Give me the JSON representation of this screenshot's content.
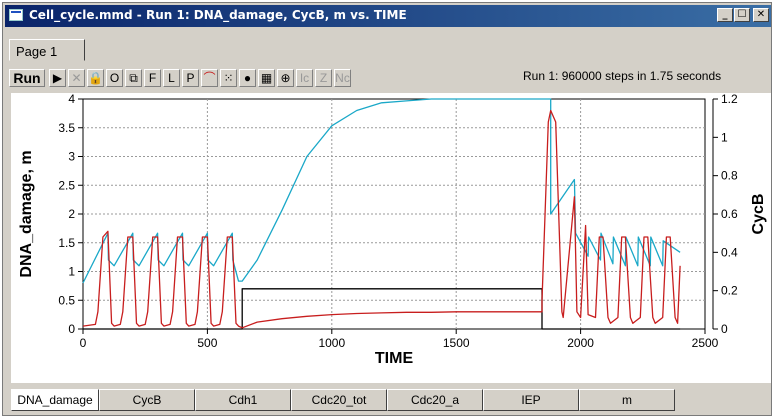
{
  "window": {
    "title": "Cell_cycle.mmd - Run 1: DNA_damage, CycB, m vs. TIME",
    "controls": {
      "minimize": "_",
      "maximize": "☐",
      "close": "✕"
    }
  },
  "tabs": [
    {
      "label": "Page 1"
    }
  ],
  "toolbar": {
    "run_label": "Run",
    "buttons": [
      "▶",
      "✕",
      "🔒",
      "O",
      "⧉",
      "F",
      "L",
      "P",
      "⌒",
      "⁙",
      "●",
      "▦",
      "⊕",
      "Ic",
      "Z",
      "Nc"
    ],
    "status": "Run 1: 960000 steps in 1.75 seconds"
  },
  "chart_data": {
    "type": "line",
    "xlabel": "TIME",
    "ylabel_left": "DNA_damage, m",
    "ylabel_right": "CycB",
    "xlim": [
      0,
      2500
    ],
    "ylim_left": [
      0,
      4
    ],
    "ylim_right": [
      0,
      1.2
    ],
    "xticks": [
      0,
      500,
      1000,
      1500,
      2000,
      2500
    ],
    "yticks_left": [
      0,
      0.5,
      1,
      1.5,
      2,
      2.5,
      3,
      3.5,
      4
    ],
    "yticks_right": [
      0,
      0.2,
      0.4,
      0.6,
      0.8,
      1,
      1.2
    ],
    "grid": true,
    "series": [
      {
        "axis": "left",
        "color": "#000000",
        "x": [
          0,
          640,
          640,
          1845,
          1845,
          2400
        ],
        "y": [
          0,
          0,
          0.7,
          0.7,
          0,
          0
        ]
      },
      {
        "axis": "right",
        "color": "#1aa8c8",
        "x": [
          0,
          100,
          102,
          125,
          200,
          202,
          225,
          300,
          302,
          325,
          400,
          402,
          425,
          500,
          502,
          525,
          600,
          602,
          625,
          640,
          700,
          800,
          900,
          1000,
          1100,
          1200,
          1300,
          1400,
          1500,
          1600,
          1700,
          1845,
          1880,
          1880,
          1975,
          1980,
          2030,
          2032,
          2080,
          2082,
          2130,
          2132,
          2180,
          2182,
          2230,
          2232,
          2280,
          2282,
          2330,
          2332,
          2400
        ],
        "y": [
          0.24,
          0.5,
          0.36,
          0.33,
          0.5,
          0.36,
          0.33,
          0.5,
          0.36,
          0.33,
          0.5,
          0.36,
          0.33,
          0.5,
          0.36,
          0.33,
          0.5,
          0.36,
          0.25,
          0.25,
          0.36,
          0.62,
          0.9,
          1.06,
          1.14,
          1.18,
          1.19,
          1.2,
          1.2,
          1.2,
          1.2,
          1.2,
          1.2,
          0.6,
          0.78,
          0.5,
          0.38,
          0.48,
          0.36,
          0.5,
          0.34,
          0.48,
          0.33,
          0.48,
          0.33,
          0.48,
          0.33,
          0.48,
          0.33,
          0.46,
          0.4
        ]
      },
      {
        "axis": "left",
        "color": "#c81e1e",
        "x": [
          0,
          50,
          60,
          80,
          100,
          115,
          125,
          150,
          160,
          180,
          200,
          215,
          225,
          250,
          260,
          280,
          300,
          315,
          325,
          350,
          360,
          380,
          400,
          415,
          425,
          450,
          460,
          480,
          500,
          515,
          525,
          550,
          560,
          580,
          600,
          615,
          625,
          640,
          700,
          800,
          900,
          1000,
          1100,
          1200,
          1300,
          1400,
          1500,
          1600,
          1700,
          1845,
          1845,
          1870,
          1880,
          1900,
          1925,
          1930,
          1975,
          1985,
          2000,
          2020,
          2030,
          2060,
          2075,
          2090,
          2110,
          2120,
          2150,
          2165,
          2180,
          2200,
          2210,
          2240,
          2255,
          2270,
          2290,
          2300,
          2330,
          2345,
          2360,
          2380,
          2390,
          2400
        ],
        "y": [
          0.05,
          0.08,
          0.3,
          1.6,
          1.7,
          0.1,
          0.05,
          0.08,
          0.3,
          1.6,
          1.6,
          0.1,
          0.05,
          0.08,
          0.3,
          1.6,
          1.6,
          0.1,
          0.05,
          0.08,
          0.3,
          1.6,
          1.6,
          0.1,
          0.05,
          0.08,
          0.3,
          1.6,
          1.6,
          0.1,
          0.05,
          0.08,
          0.3,
          1.6,
          1.6,
          0.1,
          0.05,
          0.02,
          0.12,
          0.18,
          0.22,
          0.25,
          0.27,
          0.28,
          0.29,
          0.29,
          0.3,
          0.3,
          0.3,
          0.3,
          0.5,
          3.6,
          3.8,
          3.6,
          0.3,
          0.2,
          2.3,
          0.3,
          0.2,
          1.8,
          0.25,
          0.2,
          1.6,
          1.6,
          0.2,
          0.1,
          0.2,
          1.6,
          1.6,
          0.2,
          0.1,
          0.2,
          1.6,
          1.6,
          0.2,
          0.1,
          0.2,
          1.6,
          1.6,
          0.2,
          0.1,
          1.1
        ]
      }
    ]
  },
  "bottom_tabs": [
    "DNA_damage",
    "CycB",
    "Cdh1",
    "Cdc20_tot",
    "Cdc20_a",
    "IEP",
    "m"
  ]
}
